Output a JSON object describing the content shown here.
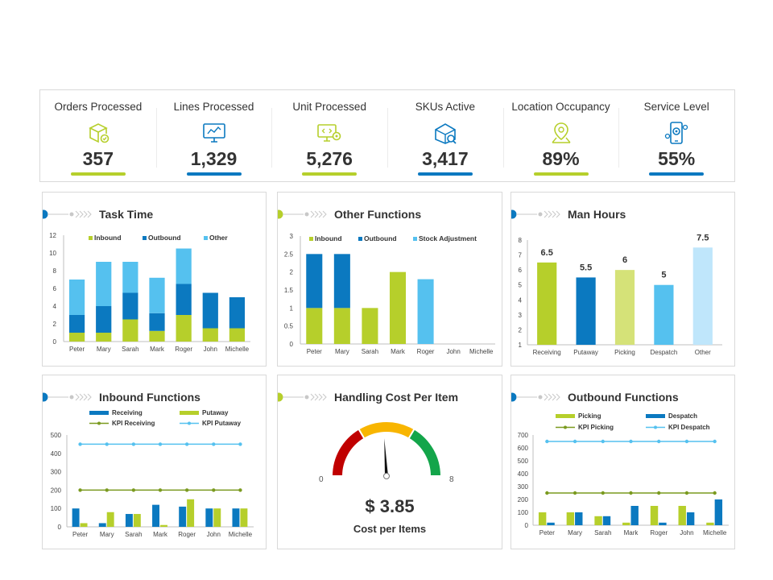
{
  "colors": {
    "lime": "#b6cf2b",
    "blue": "#0b79c0",
    "lightblue": "#55c1ef",
    "sky": "#bfe6fb",
    "palelime": "#d5e278",
    "olive": "#7a9a1f",
    "red": "#c00000",
    "yellow": "#f8b500",
    "green": "#13a54a"
  },
  "kpis": [
    {
      "label": "Orders Processed",
      "value": "357",
      "icon": "package-icon",
      "accent": "#b6cf2b"
    },
    {
      "label": "Lines Processed",
      "value": "1,329",
      "icon": "monitor-icon",
      "accent": "#0b79c0"
    },
    {
      "label": "Unit Processed",
      "value": "5,276",
      "icon": "computer-gear-icon",
      "accent": "#b6cf2b"
    },
    {
      "label": "SKUs Active",
      "value": "3,417",
      "icon": "box-search-icon",
      "accent": "#0b79c0"
    },
    {
      "label": "Location Occupancy",
      "value": "89%",
      "icon": "location-pin-icon",
      "accent": "#b6cf2b"
    },
    {
      "label": "Service Level",
      "value": "55%",
      "icon": "phone-gear-icon",
      "accent": "#0b79c0"
    }
  ],
  "panels": {
    "task_time": {
      "title": "Task Time"
    },
    "other_functions": {
      "title": "Other Functions"
    },
    "man_hours": {
      "title": "Man Hours"
    },
    "inbound_functions": {
      "title": "Inbound Functions"
    },
    "handling_cost": {
      "title": "Handling Cost Per Item",
      "value": "$ 3.85",
      "caption": "Cost per Items",
      "min": "0",
      "max": "8",
      "reading": 3.85,
      "range": [
        0,
        8
      ]
    },
    "outbound_functions": {
      "title": "Outbound Functions"
    }
  },
  "chart_data": [
    {
      "id": "task_time",
      "type": "bar",
      "stacked": true,
      "title": "Task Time",
      "categories": [
        "Peter",
        "Mary",
        "Sarah",
        "Mark",
        "Roger",
        "John",
        "Michelle"
      ],
      "series": [
        {
          "name": "Inbound",
          "values": [
            1,
            1,
            2.5,
            1.2,
            3,
            1.5,
            1.5
          ],
          "color": "#b6cf2b"
        },
        {
          "name": "Outbound",
          "values": [
            2,
            3,
            3,
            2,
            3.5,
            4,
            3.5
          ],
          "color": "#0b79c0"
        },
        {
          "name": "Other",
          "values": [
            4,
            5,
            3.5,
            4,
            4,
            0,
            0
          ],
          "color": "#55c1ef"
        }
      ],
      "ylim": [
        0,
        12
      ],
      "yticks": [
        0,
        2,
        4,
        6,
        8,
        10,
        12
      ],
      "legend": "top"
    },
    {
      "id": "other_functions",
      "type": "bar",
      "stacked": true,
      "title": "Other Functions",
      "categories": [
        "Peter",
        "Mary",
        "Sarah",
        "Mark",
        "Roger",
        "John",
        "Michelle"
      ],
      "series": [
        {
          "name": "Inbound",
          "values": [
            1,
            1,
            1,
            2,
            0,
            0,
            0
          ],
          "color": "#b6cf2b"
        },
        {
          "name": "Outbound",
          "values": [
            1.5,
            1.5,
            0,
            0,
            0,
            0,
            0
          ],
          "color": "#0b79c0"
        },
        {
          "name": "Stock Adjustment",
          "values": [
            0,
            0,
            0,
            0,
            1.8,
            0,
            0
          ],
          "color": "#55c1ef"
        }
      ],
      "ylim": [
        0,
        3
      ],
      "yticks": [
        0,
        0.5,
        1,
        1.5,
        2,
        2.5,
        3
      ],
      "legend": "top"
    },
    {
      "id": "man_hours",
      "type": "bar",
      "title": "Man Hours",
      "categories": [
        "Receiving",
        "Putaway",
        "Picking",
        "Despatch",
        "Other"
      ],
      "values": [
        6.5,
        5.5,
        6,
        5,
        7.5
      ],
      "labels": [
        "6.5",
        "5.5",
        "6",
        "5",
        "7.5"
      ],
      "colors": [
        "#b6cf2b",
        "#0b79c0",
        "#d5e278",
        "#55c1ef",
        "#bfe6fb"
      ],
      "ylim": [
        1,
        8
      ],
      "yticks": [
        1,
        2,
        3,
        4,
        5,
        6,
        7,
        8
      ]
    },
    {
      "id": "inbound_functions",
      "type": "bar+line",
      "title": "Inbound Functions",
      "categories": [
        "Peter",
        "Mary",
        "Sarah",
        "Mark",
        "Roger",
        "John",
        "Michelle"
      ],
      "series": [
        {
          "name": "Receiving",
          "kind": "bar",
          "values": [
            100,
            20,
            70,
            120,
            110,
            100,
            100
          ],
          "color": "#0b79c0"
        },
        {
          "name": "Putaway",
          "kind": "bar",
          "values": [
            20,
            80,
            70,
            10,
            150,
            100,
            100
          ],
          "color": "#b6cf2b"
        },
        {
          "name": "KPI Receiving",
          "kind": "line",
          "values": [
            200,
            200,
            200,
            200,
            200,
            200,
            200
          ],
          "color": "#7a9a1f"
        },
        {
          "name": "KPI Putaway",
          "kind": "line",
          "values": [
            450,
            450,
            450,
            450,
            450,
            450,
            450
          ],
          "color": "#55c1ef"
        }
      ],
      "ylim": [
        0,
        500
      ],
      "yticks": [
        0,
        100,
        200,
        300,
        400,
        500
      ],
      "legend": "top"
    },
    {
      "id": "handling_cost",
      "type": "gauge",
      "title": "Handling Cost Per Item",
      "value": 3.85,
      "min": 0,
      "max": 8,
      "bands": [
        {
          "color": "#c00000"
        },
        {
          "color": "#f8b500"
        },
        {
          "color": "#13a54a"
        }
      ]
    },
    {
      "id": "outbound_functions",
      "type": "bar+line",
      "title": "Outbound Functions",
      "categories": [
        "Peter",
        "Mary",
        "Sarah",
        "Mark",
        "Roger",
        "John",
        "Michelle"
      ],
      "series": [
        {
          "name": "Picking",
          "kind": "bar",
          "values": [
            100,
            100,
            70,
            20,
            150,
            150,
            20
          ],
          "color": "#b6cf2b"
        },
        {
          "name": "Despatch",
          "kind": "bar",
          "values": [
            20,
            100,
            70,
            150,
            20,
            100,
            200
          ],
          "color": "#0b79c0"
        },
        {
          "name": "KPI Picking",
          "kind": "line",
          "values": [
            250,
            250,
            250,
            250,
            250,
            250,
            250
          ],
          "color": "#7a9a1f"
        },
        {
          "name": "KPI Despatch",
          "kind": "line",
          "values": [
            650,
            650,
            650,
            650,
            650,
            650,
            650
          ],
          "color": "#55c1ef"
        }
      ],
      "ylim": [
        0,
        700
      ],
      "yticks": [
        0,
        100,
        200,
        300,
        400,
        500,
        600,
        700
      ],
      "legend": "top"
    }
  ]
}
